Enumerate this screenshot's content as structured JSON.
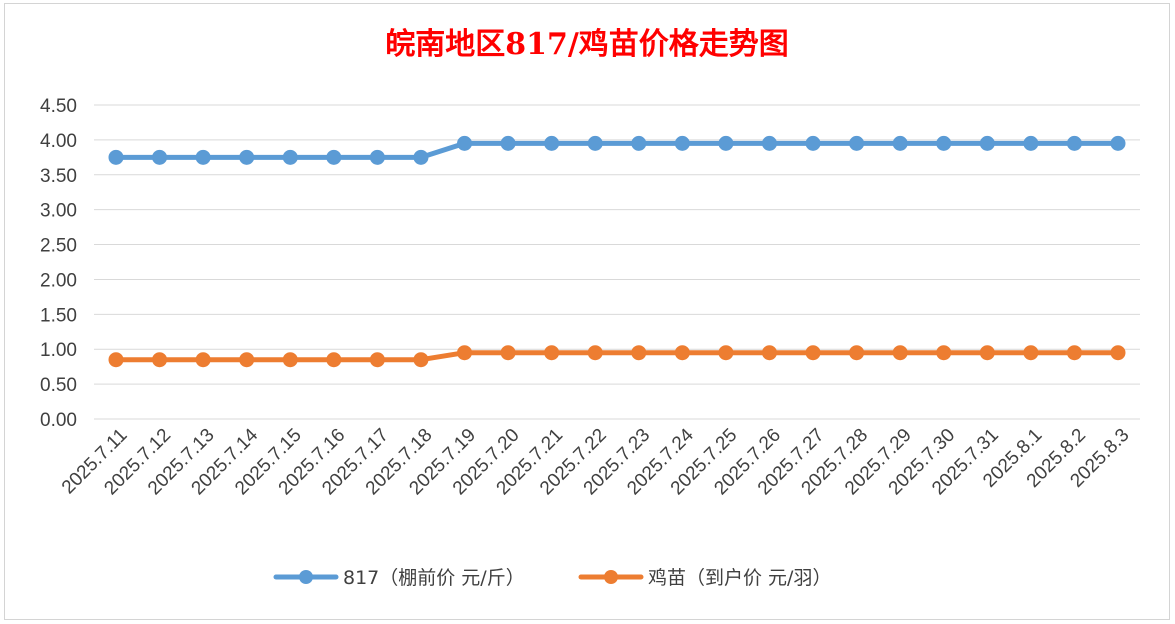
{
  "chart_data": {
    "type": "line",
    "title": "皖南地区817/鸡苗价格走势图",
    "title_color": "#ff0000",
    "xlabel": "",
    "ylabel": "",
    "ylim": [
      0,
      4.5
    ],
    "y_ticks": [
      "0.00",
      "0.50",
      "1.00",
      "1.50",
      "2.00",
      "2.50",
      "3.00",
      "3.50",
      "4.00",
      "4.50"
    ],
    "grid": true,
    "legend_position": "bottom",
    "categories": [
      "2025.7.11",
      "2025.7.12",
      "2025.7.13",
      "2025.7.14",
      "2025.7.15",
      "2025.7.16",
      "2025.7.17",
      "2025.7.18",
      "2025.7.19",
      "2025.7.20",
      "2025.7.21",
      "2025.7.22",
      "2025.7.23",
      "2025.7.24",
      "2025.7.25",
      "2025.7.26",
      "2025.7.27",
      "2025.7.28",
      "2025.7.29",
      "2025.7.30",
      "2025.7.31",
      "2025.8.1",
      "2025.8.2",
      "2025.8.3"
    ],
    "series": [
      {
        "name": "817（棚前价 元/斤）",
        "color": "#5b9bd5",
        "values": [
          3.75,
          3.75,
          3.75,
          3.75,
          3.75,
          3.75,
          3.75,
          3.75,
          3.95,
          3.95,
          3.95,
          3.95,
          3.95,
          3.95,
          3.95,
          3.95,
          3.95,
          3.95,
          3.95,
          3.95,
          3.95,
          3.95,
          3.95,
          3.95
        ]
      },
      {
        "name": "鸡苗（到户价 元/羽）",
        "color": "#ed7d31",
        "values": [
          0.85,
          0.85,
          0.85,
          0.85,
          0.85,
          0.85,
          0.85,
          0.85,
          0.95,
          0.95,
          0.95,
          0.95,
          0.95,
          0.95,
          0.95,
          0.95,
          0.95,
          0.95,
          0.95,
          0.95,
          0.95,
          0.95,
          0.95,
          0.95
        ]
      }
    ]
  }
}
